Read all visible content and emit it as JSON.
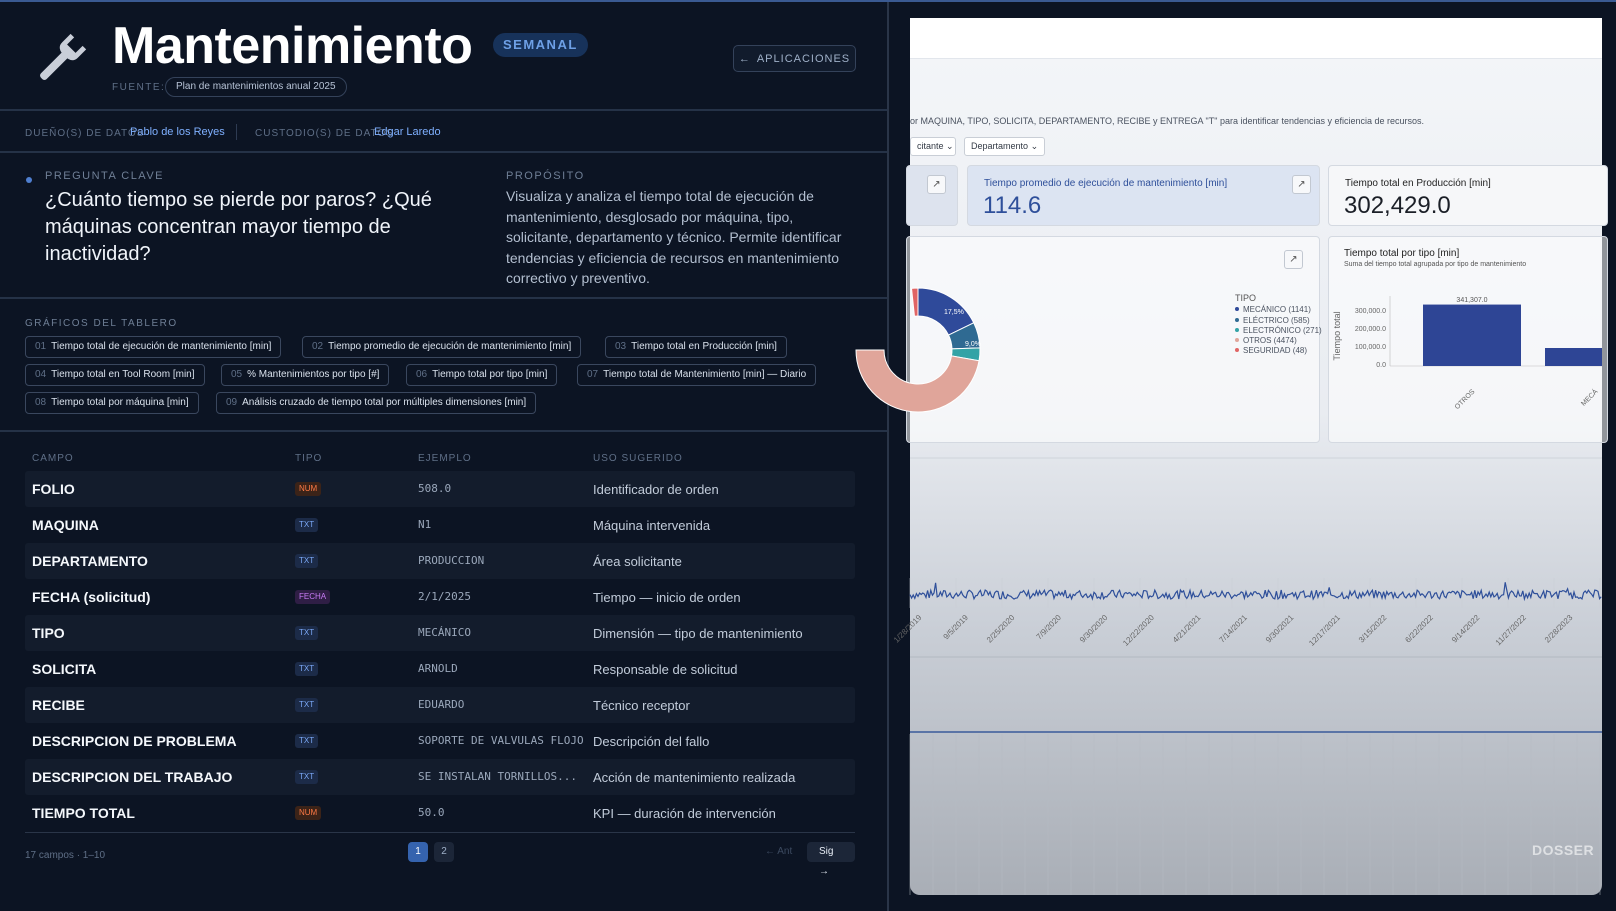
{
  "header": {
    "title": "Mantenimiento",
    "badge": "SEMANAL",
    "fuente_label": "FUENTE:",
    "fuente_value": "Plan de mantenimientos anual 2025",
    "apps_button": "APLICACIONES"
  },
  "owners": {
    "owner_label": "DUEÑO(S) DE DATOS",
    "owner_value": "Pablo de los Reyes",
    "custodian_label": "CUSTODIO(S) DE DATOS",
    "custodian_value": "Edgar Laredo"
  },
  "question": {
    "label": "PREGUNTA CLAVE",
    "text": "¿Cuánto tiempo se pierde por paros? ¿Qué máquinas concentran mayor tiempo de inactividad?"
  },
  "purpose": {
    "label": "PROPÓSITO",
    "text": "Visualiza y analiza el tiempo total de ejecución de mantenimiento, desglosado por máquina, tipo, solicitante, departamento y técnico. Permite identificar tendencias y eficiencia de recursos en mantenimiento correctivo y preventivo."
  },
  "charts": {
    "label": "GRÁFICOS DEL TABLERO",
    "items": [
      {
        "n": "01",
        "label": "Tiempo total de ejecución de mantenimiento [min]"
      },
      {
        "n": "02",
        "label": "Tiempo promedio de ejecución de mantenimiento [min]"
      },
      {
        "n": "03",
        "label": "Tiempo total en Producción [min]"
      },
      {
        "n": "04",
        "label": "Tiempo total en Tool Room [min]"
      },
      {
        "n": "05",
        "label": "% Mantenimientos por tipo [#]"
      },
      {
        "n": "06",
        "label": "Tiempo total por tipo [min]"
      },
      {
        "n": "07",
        "label": "Tiempo total de Mantenimiento [min] — Diario"
      },
      {
        "n": "08",
        "label": "Tiempo total por máquina [min]"
      },
      {
        "n": "09",
        "label": "Análisis cruzado de tiempo total por múltiples dimensiones [min]"
      }
    ]
  },
  "table": {
    "headers": {
      "campo": "CAMPO",
      "tipo": "TIPO",
      "ejemplo": "EJEMPLO",
      "uso": "USO SUGERIDO"
    },
    "rows": [
      {
        "campo": "FOLIO",
        "tipo": "NUM",
        "ejemplo": "508.0",
        "uso": "Identificador de orden"
      },
      {
        "campo": "MAQUINA",
        "tipo": "TXT",
        "ejemplo": "N1",
        "uso": "Máquina intervenida"
      },
      {
        "campo": "DEPARTAMENTO",
        "tipo": "TXT",
        "ejemplo": "PRODUCCION",
        "uso": "Área solicitante"
      },
      {
        "campo": "FECHA (solicitud)",
        "tipo": "FECHA",
        "ejemplo": "2/1/2025",
        "uso": "Tiempo — inicio de orden"
      },
      {
        "campo": "TIPO",
        "tipo": "TXT",
        "ejemplo": "MECÁNICO",
        "uso": "Dimensión — tipo de mantenimiento"
      },
      {
        "campo": "SOLICITA",
        "tipo": "TXT",
        "ejemplo": "ARNOLD",
        "uso": "Responsable de solicitud"
      },
      {
        "campo": "RECIBE",
        "tipo": "TXT",
        "ejemplo": "EDUARDO",
        "uso": "Técnico receptor"
      },
      {
        "campo": "DESCRIPCION DE PROBLEMA",
        "tipo": "TXT",
        "ejemplo": "SOPORTE DE VALVULAS FLOJO",
        "uso": "Descripción del fallo"
      },
      {
        "campo": "DESCRIPCION DEL TRABAJO",
        "tipo": "TXT",
        "ejemplo": "SE INSTALAN TORNILLOS...",
        "uso": "Acción de mantenimiento realizada"
      },
      {
        "campo": "TIEMPO TOTAL",
        "tipo": "NUM",
        "ejemplo": "50.0",
        "uso": "KPI — duración de intervención"
      }
    ]
  },
  "footer": {
    "count": "17 campos · 1–10",
    "pages": [
      "1",
      "2"
    ],
    "prev": "← Ant",
    "next": "Sig →"
  },
  "preview": {
    "description": "or MAQUINA, TIPO, SOLICITA, DEPARTAMENTO, RECIBE y ENTREGA \"T\" para identificar tendencias y eficiencia de recursos.",
    "dropdowns": [
      "citante",
      "Departamento"
    ],
    "kpi_avg_title": "Tiempo promedio de ejecución de mantenimiento [min]",
    "kpi_avg_value": "114.6",
    "kpi_prod_title": "Tiempo total en Producción [min]",
    "kpi_prod_value": "302,429.0",
    "donut_labels": [
      "17,5%",
      "9,0%"
    ],
    "legend_title": "TIPO",
    "legend": [
      {
        "label": "MECÁNICO (1141)",
        "color": "#2f4a9a"
      },
      {
        "label": "ELÉCTRICO (585)",
        "color": "#2f6a92"
      },
      {
        "label": "ELECTRÓNICO (271)",
        "color": "#33a3a6"
      },
      {
        "label": "OTROS (4474)",
        "color": "#e0a59a"
      },
      {
        "label": "SEGURIDAD (48)",
        "color": "#e06565"
      }
    ],
    "bar_title": "Tiempo total por tipo [min]",
    "bar_subtitle": "Suma del tiempo total agrupada por tipo de mantenimiento",
    "bar_ylabel": "Tiempo total",
    "bar_yticks": [
      "300,000.0",
      "200,000.0",
      "100,000.0",
      "0.0"
    ],
    "bar_value_label": "341,307.0",
    "bar_categories": [
      "OTROS",
      "MECÁ"
    ],
    "bar_values": [
      341307,
      100000
    ],
    "timeline_dates": [
      "1/28/2019",
      "9/5/2019",
      "2/25/2020",
      "7/9/2020",
      "9/30/2020",
      "12/22/2020",
      "4/21/2021",
      "7/14/2021",
      "9/30/2021",
      "12/17/2021",
      "3/15/2022",
      "6/22/2022",
      "9/14/2022",
      "11/27/2022",
      "2/28/2023"
    ],
    "watermark": "DOSSER"
  },
  "colors": {
    "accent": "#4f7fd0",
    "background": "#0c1423",
    "num_badge": "#ff7a45",
    "txt_badge": "#7aa7f5",
    "fecha_badge": "#c77bf5"
  }
}
